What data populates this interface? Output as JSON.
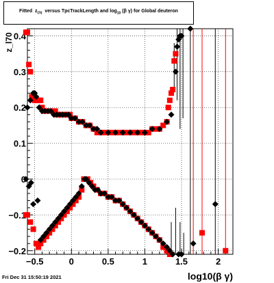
{
  "title": {
    "main": "Fitted",
    "z": "z",
    "z_sub": "l70",
    "mid": "versus TpcTrackLength and log",
    "log_sub": "10",
    "tail": "(β γ) for Global deuteron"
  },
  "timestamp": "Fri Dec 31 15:50:19 2021",
  "colors": {
    "series_a": "#000000",
    "series_b": "#ff0000",
    "grid": "#000000"
  },
  "chart_data": {
    "type": "scatter",
    "title": "Fitted z_l70 versus TpcTrackLength and log10(β γ) for Global deuteron",
    "xlabel": "log10(β γ)",
    "ylabel": "z_l70",
    "xlim": [
      -0.6,
      2.2
    ],
    "ylim": [
      -0.21,
      0.42
    ],
    "x_ticks": [
      -0.5,
      0,
      0.5,
      1,
      1.5,
      2
    ],
    "x_tick_labels": [
      "−0.5",
      "0",
      "0.5",
      "1",
      "1.5",
      "2"
    ],
    "y_ticks": [
      -0.2,
      -0.1,
      0,
      0.1,
      0.2,
      0.3,
      0.4
    ],
    "y_tick_labels": [
      "−0.2",
      "−0.1",
      "0",
      "0.1",
      "0.2",
      "0.3",
      "0.4"
    ],
    "grid": true,
    "series": [
      {
        "marker": "square",
        "color": "#ff0000",
        "points": [
          [
            -0.62,
            0.41
          ],
          [
            -0.6,
            0.41
          ],
          [
            -0.58,
            0.32
          ],
          [
            -0.56,
            0.3
          ],
          [
            -0.54,
            0.23
          ],
          [
            -0.52,
            0.23
          ],
          [
            -0.5,
            0.22
          ],
          [
            -0.48,
            0.22
          ],
          [
            -0.46,
            0.22
          ],
          [
            -0.44,
            0.22
          ],
          [
            -0.42,
            0.22
          ],
          [
            -0.4,
            0.2
          ],
          [
            -0.38,
            0.19
          ],
          [
            -0.36,
            0.19
          ],
          [
            -0.34,
            0.19
          ],
          [
            -0.32,
            0.19
          ],
          [
            -0.3,
            0.19
          ],
          [
            -0.28,
            0.19
          ],
          [
            -0.26,
            0.19
          ],
          [
            -0.24,
            0.19
          ],
          [
            -0.22,
            0.19
          ],
          [
            -0.2,
            0.18
          ],
          [
            -0.18,
            0.18
          ],
          [
            -0.16,
            0.18
          ],
          [
            -0.14,
            0.18
          ],
          [
            -0.12,
            0.18
          ],
          [
            -0.1,
            0.18
          ],
          [
            -0.08,
            0.18
          ],
          [
            -0.06,
            0.18
          ],
          [
            -0.04,
            0.18
          ],
          [
            -0.02,
            0.18
          ],
          [
            0.0,
            0.17
          ],
          [
            0.05,
            0.17
          ],
          [
            0.1,
            0.16
          ],
          [
            0.15,
            0.16
          ],
          [
            0.2,
            0.15
          ],
          [
            0.25,
            0.15
          ],
          [
            0.3,
            0.14
          ],
          [
            0.35,
            0.13
          ],
          [
            0.4,
            0.13
          ],
          [
            0.45,
            0.13
          ],
          [
            0.5,
            0.13
          ],
          [
            0.55,
            0.13
          ],
          [
            0.6,
            0.13
          ],
          [
            0.65,
            0.13
          ],
          [
            0.7,
            0.13
          ],
          [
            0.75,
            0.13
          ],
          [
            0.8,
            0.13
          ],
          [
            0.85,
            0.13
          ],
          [
            0.9,
            0.13
          ],
          [
            0.95,
            0.13
          ],
          [
            1.0,
            0.13
          ],
          [
            1.05,
            0.13
          ],
          [
            1.1,
            0.14
          ],
          [
            1.15,
            0.14
          ],
          [
            1.2,
            0.14
          ],
          [
            1.25,
            0.15
          ],
          [
            1.3,
            0.16
          ],
          [
            1.32,
            0.2
          ],
          [
            1.34,
            0.22
          ],
          [
            1.36,
            0.24
          ],
          [
            1.38,
            0.25
          ],
          [
            1.4,
            0.33
          ],
          [
            1.42,
            0.35
          ],
          [
            -0.62,
            -0.1
          ],
          [
            -0.6,
            -0.1
          ],
          [
            -0.56,
            -0.12
          ],
          [
            -0.52,
            -0.14
          ],
          [
            -0.48,
            -0.18
          ],
          [
            -0.45,
            -0.19
          ],
          [
            -0.42,
            -0.18
          ],
          [
            -0.38,
            -0.17
          ],
          [
            -0.34,
            -0.16
          ],
          [
            -0.3,
            -0.15
          ],
          [
            -0.26,
            -0.14
          ],
          [
            -0.22,
            -0.13
          ],
          [
            -0.18,
            -0.12
          ],
          [
            -0.14,
            -0.11
          ],
          [
            -0.1,
            -0.1
          ],
          [
            -0.06,
            -0.09
          ],
          [
            -0.02,
            -0.08
          ],
          [
            0.02,
            -0.07
          ],
          [
            0.06,
            -0.06
          ],
          [
            0.1,
            -0.05
          ],
          [
            0.14,
            -0.03
          ],
          [
            0.17,
            0.0
          ],
          [
            0.19,
            0.0
          ],
          [
            0.22,
            0.0
          ],
          [
            0.26,
            -0.01
          ],
          [
            0.3,
            -0.02
          ],
          [
            0.35,
            -0.03
          ],
          [
            0.4,
            -0.04
          ],
          [
            0.45,
            -0.04
          ],
          [
            0.5,
            -0.05
          ],
          [
            0.55,
            -0.05
          ],
          [
            0.6,
            -0.06
          ],
          [
            0.65,
            -0.06
          ],
          [
            0.7,
            -0.07
          ],
          [
            0.75,
            -0.08
          ],
          [
            0.8,
            -0.09
          ],
          [
            0.85,
            -0.1
          ],
          [
            0.9,
            -0.11
          ],
          [
            0.95,
            -0.12
          ],
          [
            1.0,
            -0.13
          ],
          [
            1.05,
            -0.14
          ],
          [
            1.1,
            -0.15
          ],
          [
            1.15,
            -0.16
          ],
          [
            1.2,
            -0.17
          ],
          [
            1.25,
            -0.19
          ],
          [
            1.3,
            -0.2
          ],
          [
            1.34,
            -0.21
          ],
          [
            1.78,
            -0.15
          ],
          [
            2.1,
            -0.2
          ]
        ]
      },
      {
        "marker": "diamond",
        "color": "#000000",
        "points": [
          [
            -0.6,
            0.2
          ],
          [
            -0.56,
            0.22
          ],
          [
            -0.52,
            0.24
          ],
          [
            -0.5,
            0.24
          ],
          [
            -0.48,
            0.23
          ],
          [
            -0.44,
            0.2
          ],
          [
            -0.4,
            0.19
          ],
          [
            -0.36,
            0.19
          ],
          [
            -0.32,
            0.19
          ],
          [
            -0.28,
            0.19
          ],
          [
            -0.24,
            0.18
          ],
          [
            -0.2,
            0.18
          ],
          [
            -0.16,
            0.18
          ],
          [
            -0.12,
            0.18
          ],
          [
            -0.08,
            0.18
          ],
          [
            -0.04,
            0.18
          ],
          [
            0.0,
            0.17
          ],
          [
            0.05,
            0.17
          ],
          [
            0.1,
            0.16
          ],
          [
            0.15,
            0.16
          ],
          [
            0.2,
            0.15
          ],
          [
            0.25,
            0.15
          ],
          [
            0.3,
            0.14
          ],
          [
            0.35,
            0.14
          ],
          [
            0.4,
            0.13
          ],
          [
            0.5,
            0.13
          ],
          [
            0.6,
            0.13
          ],
          [
            0.7,
            0.13
          ],
          [
            0.8,
            0.13
          ],
          [
            0.9,
            0.13
          ],
          [
            1.0,
            0.13
          ],
          [
            1.1,
            0.14
          ],
          [
            1.2,
            0.14
          ],
          [
            1.3,
            0.16
          ],
          [
            1.36,
            0.18
          ],
          [
            1.42,
            0.3
          ],
          [
            1.44,
            0.37
          ],
          [
            1.46,
            0.39
          ],
          [
            1.48,
            0.4
          ],
          [
            1.5,
            0.4
          ],
          [
            1.62,
            0.42
          ],
          [
            -0.62,
            0.0
          ],
          [
            -0.58,
            -0.02
          ],
          [
            -0.55,
            -0.01
          ],
          [
            -0.52,
            -0.07
          ],
          [
            -0.46,
            -0.06
          ],
          [
            -0.42,
            -0.17
          ],
          [
            -0.38,
            -0.16
          ],
          [
            -0.34,
            -0.15
          ],
          [
            -0.3,
            -0.14
          ],
          [
            -0.26,
            -0.13
          ],
          [
            -0.22,
            -0.12
          ],
          [
            -0.18,
            -0.11
          ],
          [
            -0.14,
            -0.1
          ],
          [
            -0.1,
            -0.09
          ],
          [
            -0.06,
            -0.08
          ],
          [
            -0.02,
            -0.07
          ],
          [
            0.02,
            -0.06
          ],
          [
            0.06,
            -0.05
          ],
          [
            0.1,
            -0.04
          ],
          [
            0.14,
            -0.02
          ],
          [
            0.18,
            0.0
          ],
          [
            0.2,
            0.0
          ],
          [
            0.24,
            -0.01
          ],
          [
            0.28,
            -0.02
          ],
          [
            0.32,
            -0.03
          ],
          [
            0.36,
            -0.03
          ],
          [
            0.4,
            -0.04
          ],
          [
            0.45,
            -0.04
          ],
          [
            0.5,
            -0.05
          ],
          [
            0.55,
            -0.05
          ],
          [
            0.6,
            -0.06
          ],
          [
            0.65,
            -0.06
          ],
          [
            0.7,
            -0.07
          ],
          [
            0.75,
            -0.08
          ],
          [
            0.8,
            -0.09
          ],
          [
            0.85,
            -0.1
          ],
          [
            0.9,
            -0.11
          ],
          [
            0.95,
            -0.12
          ],
          [
            1.0,
            -0.13
          ],
          [
            1.05,
            -0.14
          ],
          [
            1.1,
            -0.15
          ],
          [
            1.15,
            -0.16
          ],
          [
            1.2,
            -0.17
          ],
          [
            1.25,
            -0.18
          ],
          [
            1.3,
            -0.19
          ],
          [
            1.34,
            -0.2
          ],
          [
            1.38,
            -0.21
          ],
          [
            1.46,
            -0.21
          ],
          [
            1.5,
            -0.21
          ],
          [
            1.66,
            -0.18
          ],
          [
            1.96,
            -0.07
          ]
        ]
      }
    ],
    "error_bars": [
      {
        "x": 1.4,
        "y_low": 0.25,
        "y_high": 0.38,
        "color": "#000000"
      },
      {
        "x": 1.44,
        "y_low": 0.22,
        "y_high": 0.42,
        "color": "#000000"
      },
      {
        "x": 1.48,
        "y_low": 0.14,
        "y_high": 0.42,
        "color": "#000000"
      },
      {
        "x": 1.52,
        "y_low": 0.17,
        "y_high": 0.42,
        "color": "#000000"
      },
      {
        "x": 1.62,
        "y_low": -0.21,
        "y_high": 0.42,
        "color": "#000000"
      },
      {
        "x": 1.66,
        "y_low": -0.21,
        "y_high": 0.42,
        "color": "#ff0000"
      },
      {
        "x": 1.78,
        "y_low": -0.21,
        "y_high": 0.42,
        "color": "#ff0000"
      },
      {
        "x": 1.96,
        "y_low": -0.21,
        "y_high": 0.42,
        "color": "#000000"
      },
      {
        "x": 2.1,
        "y_low": -0.21,
        "y_high": 0.42,
        "color": "#ff0000"
      },
      {
        "x": 1.36,
        "y_low": -0.21,
        "y_high": -0.12,
        "color": "#000000"
      },
      {
        "x": 1.42,
        "y_low": -0.21,
        "y_high": -0.08,
        "color": "#000000"
      },
      {
        "x": 1.48,
        "y_low": -0.21,
        "y_high": -0.12,
        "color": "#000000"
      },
      {
        "x": 1.53,
        "y_low": -0.21,
        "y_high": -0.15,
        "color": "#000000"
      }
    ]
  }
}
